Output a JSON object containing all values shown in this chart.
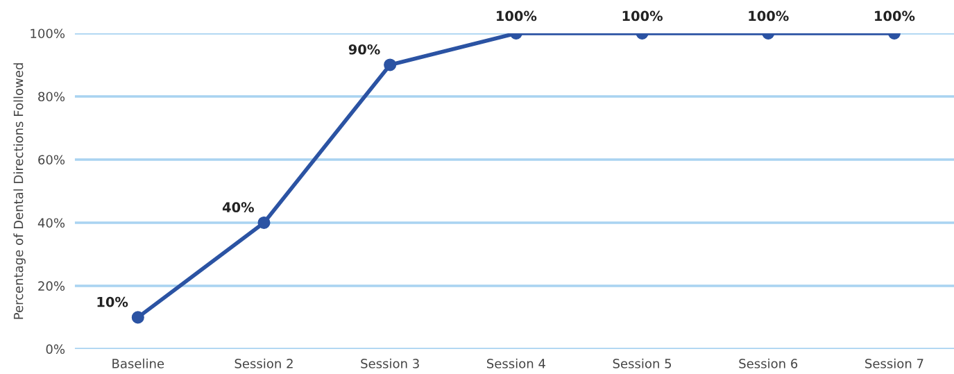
{
  "chart_data": {
    "type": "line",
    "ylabel": "Percentage of Dental Directions Followed",
    "categories": [
      "Baseline",
      "Session 2",
      "Session 3",
      "Session 4",
      "Session 5",
      "Session 6",
      "Session 7"
    ],
    "series": [
      {
        "color": "#2b53a3",
        "values": [
          10,
          40,
          90,
          100,
          100,
          100,
          100
        ],
        "value_labels": [
          "10%",
          "40%",
          "90%",
          "100%",
          "100%",
          "100%",
          "100%"
        ]
      }
    ],
    "ylim": [
      0,
      100
    ],
    "yticks": [
      {
        "value": 0,
        "label": "0%"
      },
      {
        "value": 20,
        "label": "20%"
      },
      {
        "value": 40,
        "label": "40%"
      },
      {
        "value": 60,
        "label": "60%"
      },
      {
        "value": 80,
        "label": "80%"
      },
      {
        "value": 100,
        "label": "100%"
      }
    ],
    "grid": "y",
    "marker": "circle",
    "line_style": "solid",
    "legend": false
  }
}
